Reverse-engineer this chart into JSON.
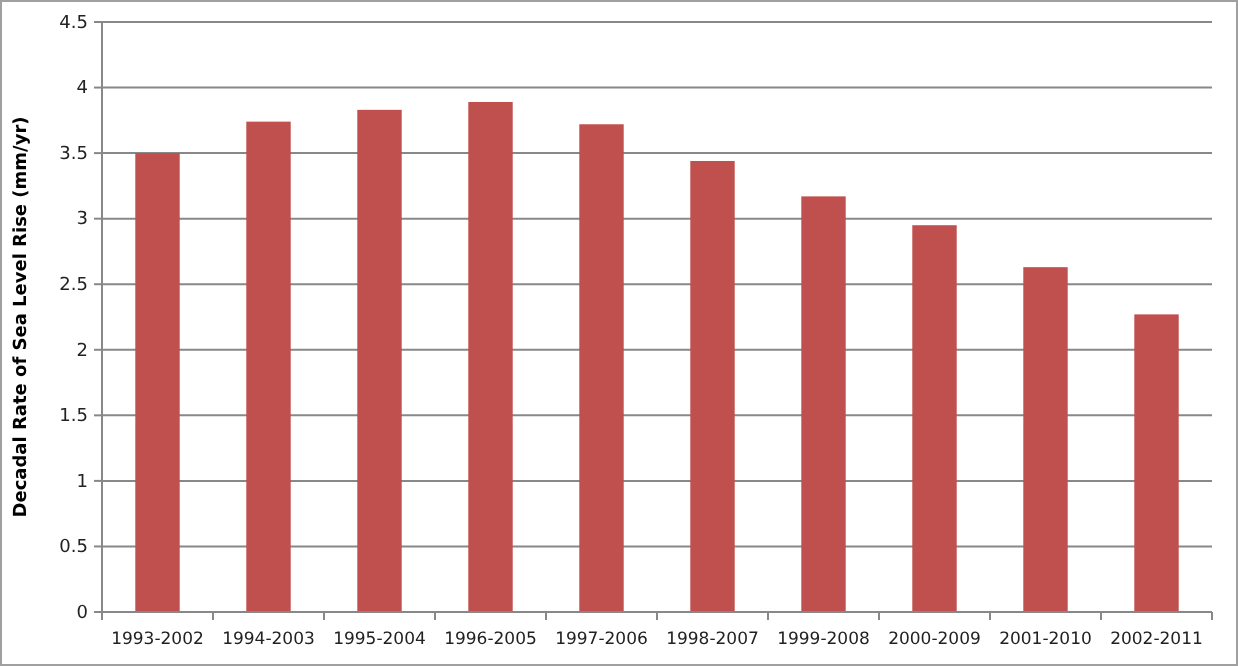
{
  "chart_data": {
    "type": "bar",
    "ylabel": "Decadal Rate of Sea Level Rise (mm/yr)",
    "categories": [
      "1993-2002",
      "1994-2003",
      "1995-2004",
      "1996-2005",
      "1997-2006",
      "1998-2007",
      "1999-2008",
      "2000-2009",
      "2001-2010",
      "2002-2011"
    ],
    "values": [
      3.5,
      3.74,
      3.83,
      3.89,
      3.72,
      3.44,
      3.17,
      2.95,
      2.63,
      2.27
    ],
    "color": "#c0504d",
    "ylim": [
      0,
      4.5
    ],
    "yticks": [
      0,
      0.5,
      1,
      1.5,
      2,
      2.5,
      3,
      3.5,
      4,
      4.5
    ],
    "grid": "y"
  }
}
